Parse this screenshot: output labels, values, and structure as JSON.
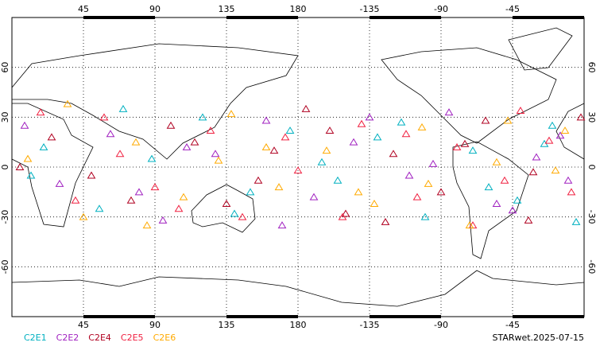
{
  "chart_data": {
    "type": "scatter",
    "xlim": [
      0,
      360
    ],
    "ylim": [
      -90,
      90
    ],
    "xticks": [
      45,
      90,
      135,
      180,
      {
        "value": 225,
        "label": "-135"
      },
      {
        "value": 270,
        "label": "-90"
      },
      {
        "value": 315,
        "label": "-45"
      }
    ],
    "yticks": [
      60,
      30,
      0,
      -30,
      -60
    ],
    "grid": true,
    "series": [
      {
        "name": "C2E1",
        "color": "#00b0c0",
        "x": [
          20,
          55,
          88,
          120,
          150,
          175,
          205,
          230,
          260,
          290,
          318,
          340,
          12,
          70,
          140,
          195,
          245,
          300,
          335,
          355
        ],
        "y": [
          12,
          -25,
          5,
          30,
          -15,
          22,
          -8,
          18,
          -30,
          10,
          -20,
          25,
          -5,
          35,
          -28,
          3,
          27,
          -12,
          14,
          -33
        ]
      },
      {
        "name": "C2E2",
        "color": "#a020c0",
        "x": [
          30,
          62,
          95,
          128,
          160,
          190,
          215,
          250,
          275,
          305,
          330,
          8,
          80,
          110,
          170,
          225,
          265,
          315,
          345,
          350
        ],
        "y": [
          -10,
          20,
          -32,
          8,
          28,
          -18,
          15,
          -5,
          33,
          -22,
          6,
          25,
          -15,
          12,
          -35,
          30,
          2,
          -26,
          19,
          -8
        ]
      },
      {
        "name": "C2E4",
        "color": "#b00020",
        "x": [
          25,
          50,
          100,
          135,
          165,
          185,
          210,
          240,
          270,
          298,
          325,
          5,
          75,
          115,
          155,
          200,
          235,
          285,
          328,
          358
        ],
        "y": [
          18,
          -5,
          25,
          -22,
          10,
          35,
          -28,
          8,
          -15,
          28,
          -32,
          0,
          -20,
          15,
          -8,
          22,
          -33,
          14,
          -3,
          30
        ]
      },
      {
        "name": "C2E5",
        "color": "#f02040",
        "x": [
          40,
          68,
          90,
          125,
          145,
          180,
          220,
          255,
          280,
          310,
          338,
          18,
          58,
          105,
          172,
          208,
          248,
          290,
          320,
          352
        ],
        "y": [
          -20,
          8,
          -12,
          22,
          -30,
          -2,
          26,
          -18,
          12,
          -8,
          16,
          33,
          30,
          -25,
          18,
          -30,
          20,
          -35,
          34,
          -15
        ]
      },
      {
        "name": "C2E6",
        "color": "#ffaa00",
        "x": [
          10,
          45,
          78,
          108,
          138,
          168,
          198,
          228,
          258,
          288,
          312,
          342,
          35,
          85,
          130,
          160,
          218,
          262,
          305,
          348
        ],
        "y": [
          5,
          -30,
          15,
          -18,
          32,
          -12,
          10,
          -22,
          24,
          -35,
          28,
          -2,
          38,
          -35,
          4,
          12,
          -15,
          -10,
          3,
          22
        ]
      }
    ],
    "footer": "STARwet.2025-07-15"
  }
}
